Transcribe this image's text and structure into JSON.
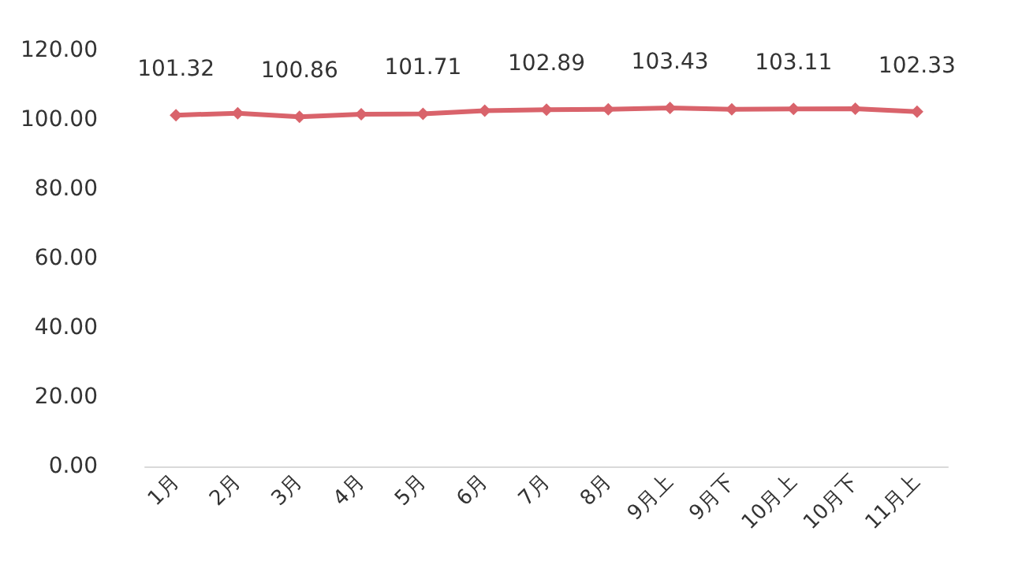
{
  "chart_data": {
    "type": "line",
    "categories": [
      "1月",
      "2月",
      "3月",
      "4月",
      "5月",
      "6月",
      "7月",
      "8月",
      "9月上",
      "9月下",
      "10月上",
      "10月下",
      "11月上"
    ],
    "series": [
      {
        "color": "#d9636b",
        "values": [
          101.32,
          101.9,
          100.86,
          101.6,
          101.71,
          102.6,
          102.89,
          103.0,
          103.43,
          103.0,
          103.11,
          103.2,
          102.33
        ],
        "value_labels": [
          "101.32",
          null,
          "100.86",
          null,
          "101.71",
          null,
          "102.89",
          null,
          "103.43",
          null,
          "103.11",
          null,
          "102.33"
        ]
      }
    ],
    "ylim": [
      0,
      120
    ],
    "yticks": [
      {
        "value": 0,
        "label": "0.00"
      },
      {
        "value": 20,
        "label": "20.00"
      },
      {
        "value": 40,
        "label": "40.00"
      },
      {
        "value": 60,
        "label": "60.00"
      },
      {
        "value": 80,
        "label": "80.00"
      },
      {
        "value": 100,
        "label": "100.00"
      },
      {
        "value": 120,
        "label": "120.00"
      }
    ],
    "grid": false,
    "marker": "diamond",
    "line_style": "solid"
  }
}
